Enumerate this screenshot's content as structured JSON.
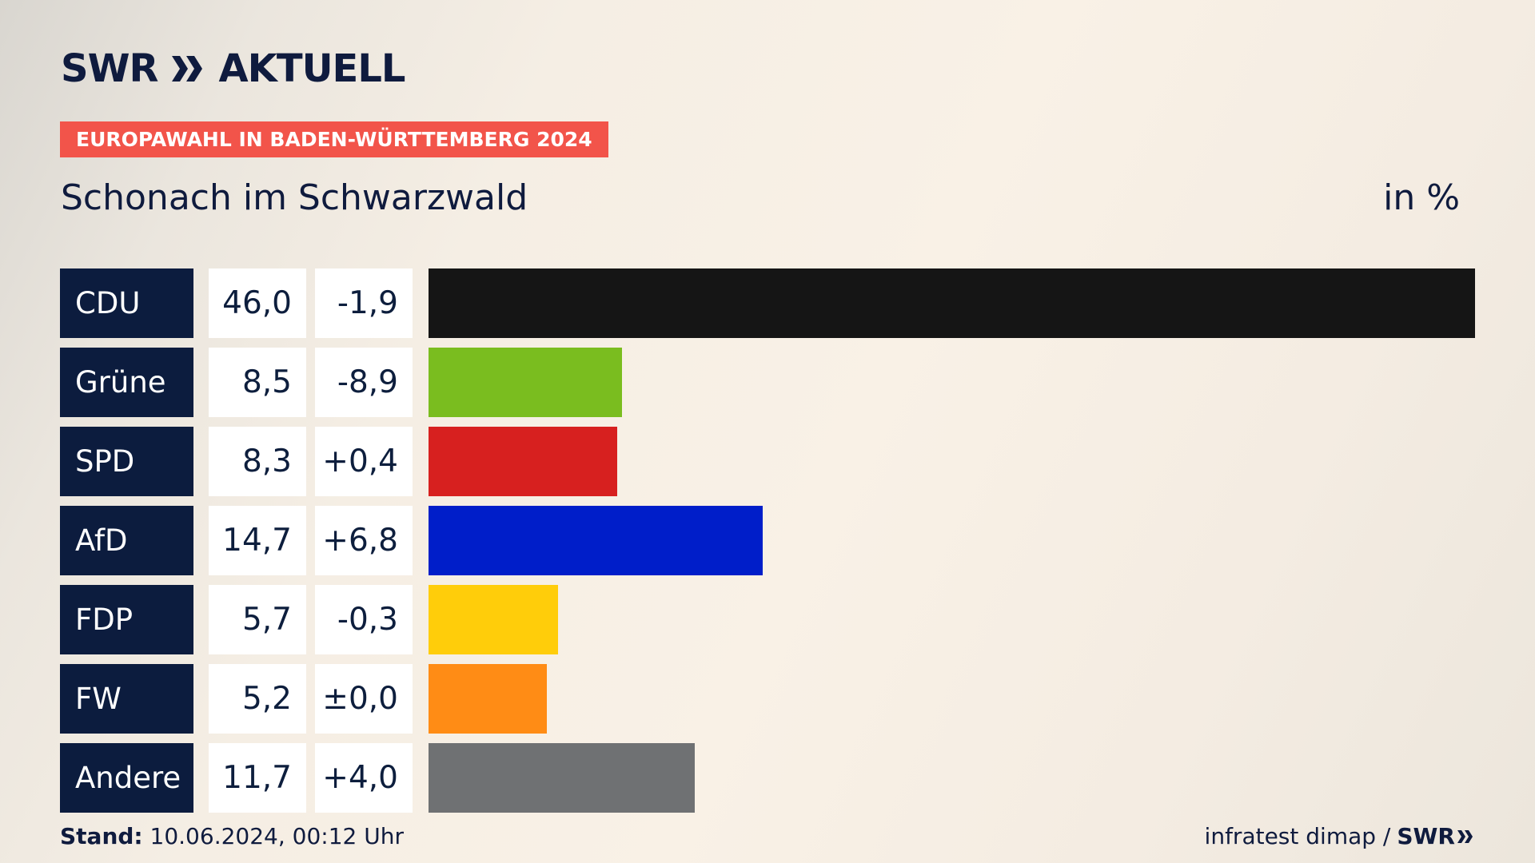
{
  "logo": {
    "brand": "SWR",
    "product": "AKTUELL"
  },
  "badge": "EUROPAWAHL IN BADEN-WÜRTTEMBERG 2024",
  "subtitle": "Schonach im Schwarzwald",
  "unit": "in %",
  "footer": {
    "stand_label": "Stand:",
    "stand_value": "10.06.2024, 00:12 Uhr",
    "source": "infratest dimap /",
    "source_brand": "SWR"
  },
  "chart_data": {
    "type": "bar",
    "orientation": "horizontal",
    "xlim": [
      0,
      46.0
    ],
    "categories": [
      "CDU",
      "Grüne",
      "SPD",
      "AfD",
      "FDP",
      "FW",
      "Andere"
    ],
    "values": [
      46.0,
      8.5,
      8.3,
      14.7,
      5.7,
      5.2,
      11.7
    ],
    "value_labels": [
      "46,0",
      "8,5",
      "8,3",
      "14,7",
      "5,7",
      "5,2",
      "11,7"
    ],
    "change_labels": [
      "-1,9",
      "-8,9",
      "+0,4",
      "+6,8",
      "-0,3",
      "±0,0",
      "+4,0"
    ],
    "changes": [
      -1.9,
      -8.9,
      0.4,
      6.8,
      -0.3,
      0.0,
      4.0
    ],
    "colors": [
      "#151515",
      "#7abd1f",
      "#d7201f",
      "#001ec9",
      "#ffcd0a",
      "#ff8c15",
      "#6f7173"
    ]
  }
}
